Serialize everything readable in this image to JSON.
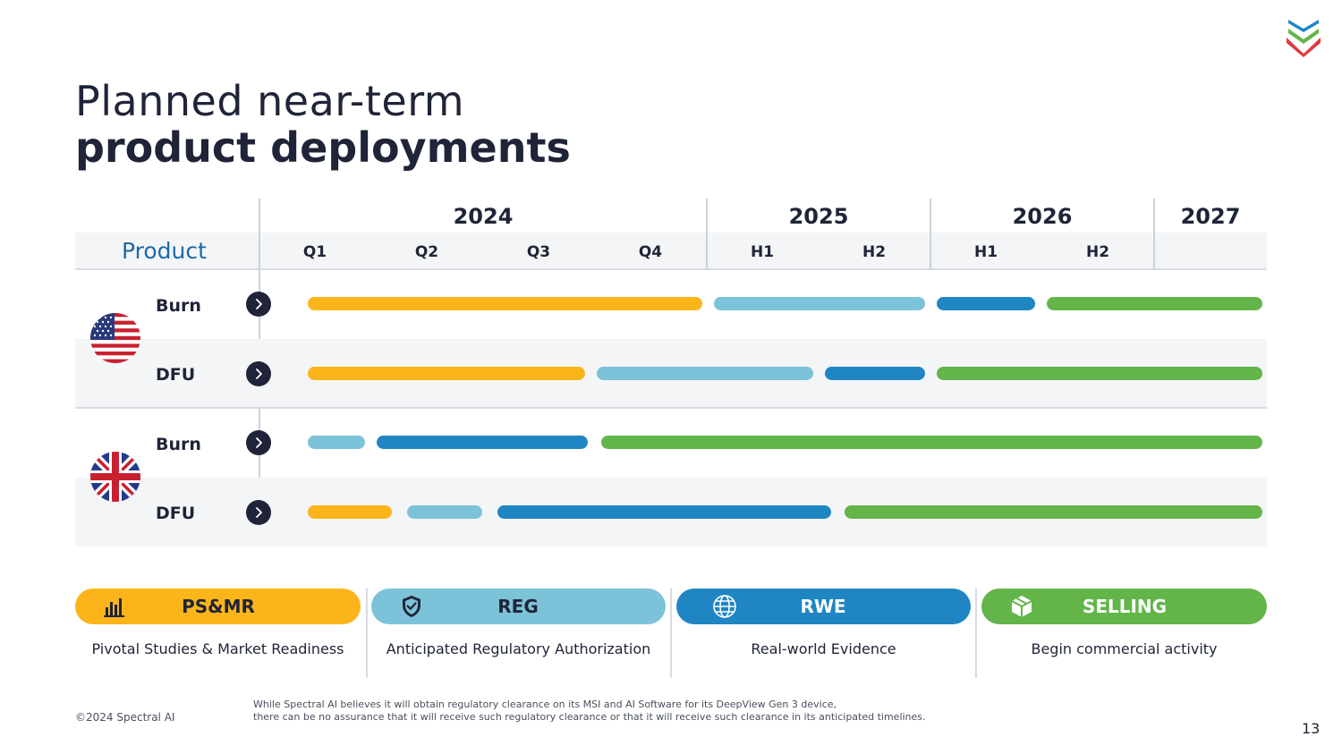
{
  "title": {
    "line1": "Planned near-term",
    "line2": "product deployments"
  },
  "timeline": {
    "product_header": "Product",
    "years": [
      "2024",
      "2025",
      "2026",
      "2027"
    ],
    "periods": [
      "Q1",
      "Q2",
      "Q3",
      "Q4",
      "H1",
      "H2",
      "H1",
      "H2"
    ],
    "regions": [
      {
        "flag": "us-flag-icon",
        "rows": [
          "Burn",
          "DFU"
        ]
      },
      {
        "flag": "uk-flag-icon",
        "rows": [
          "Burn",
          "DFU"
        ]
      }
    ]
  },
  "legend": [
    {
      "key": "ps_mr",
      "label": "PS&MR",
      "description": "Pivotal Studies & Market Readiness",
      "color": "#FBB51A",
      "text_color": "#1f2438",
      "icon": "bar-chart-icon"
    },
    {
      "key": "reg",
      "label": "REG",
      "description": "Anticipated Regulatory Authorization",
      "color": "#7CC3D9",
      "text_color": "#1f2438",
      "icon": "shield-check-icon"
    },
    {
      "key": "rwe",
      "label": "RWE",
      "description": "Real-world Evidence",
      "color": "#1F86C3",
      "text_color": "#ffffff",
      "icon": "globe-icon"
    },
    {
      "key": "selling",
      "label": "SELLING",
      "description": "Begin commercial activity",
      "color": "#63B54A",
      "text_color": "#ffffff",
      "icon": "package-icon"
    }
  ],
  "footer": {
    "copyright": "©2024 Spectral AI",
    "disclaimer_line1": "While Spectral AI believes it will obtain regulatory clearance on its MSI and AI Software for its DeepView Gen 3 device,",
    "disclaimer_line2": "there can be no assurance that it will receive such regulatory clearance or that it will receive such clearance in its anticipated timelines.",
    "page_number": "13"
  }
}
